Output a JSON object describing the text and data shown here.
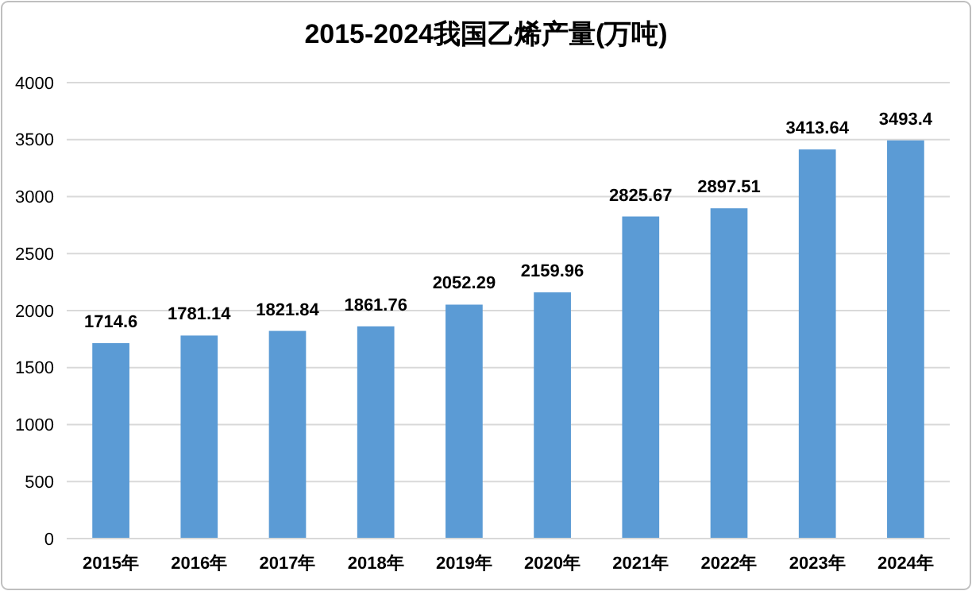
{
  "chart_data": {
    "type": "bar",
    "title": "2015-2024我国乙烯产量(万吨)",
    "categories": [
      "2015年",
      "2016年",
      "2017年",
      "2018年",
      "2019年",
      "2020年",
      "2021年",
      "2022年",
      "2023年",
      "2024年"
    ],
    "values": [
      1714.6,
      1781.14,
      1821.84,
      1861.76,
      2052.29,
      2159.96,
      2825.67,
      2897.51,
      3413.64,
      3493.4
    ],
    "color": "#5b9bd5",
    "ylim": [
      0,
      4000
    ],
    "yticks": [
      0,
      500,
      1000,
      1500,
      2000,
      2500,
      3000,
      3500,
      4000
    ],
    "grid": "y",
    "data_labels": true
  }
}
